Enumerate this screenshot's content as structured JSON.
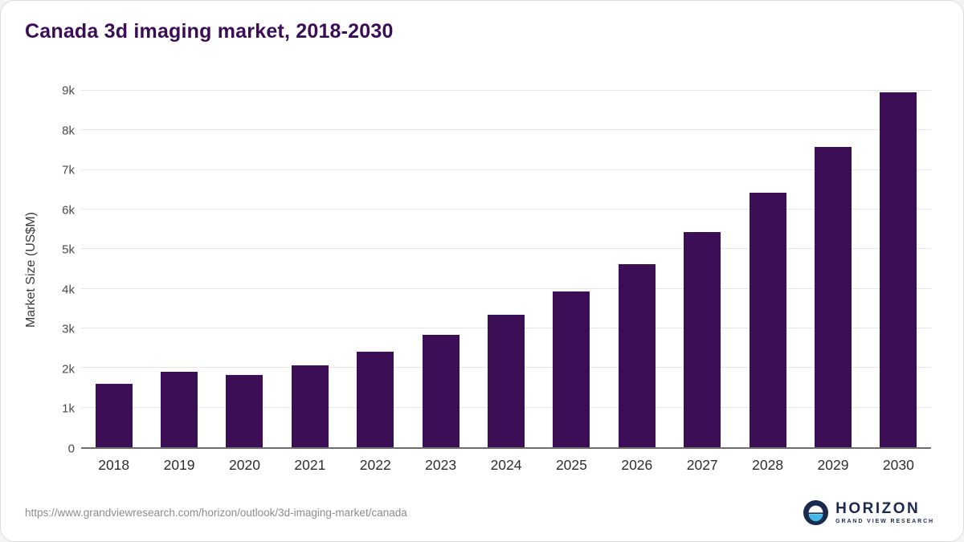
{
  "title": "Canada 3d imaging market, 2018-2030",
  "chart_data": {
    "type": "bar",
    "title": "Canada 3d imaging market, 2018-2030",
    "categories": [
      "2018",
      "2019",
      "2020",
      "2021",
      "2022",
      "2023",
      "2024",
      "2025",
      "2026",
      "2027",
      "2028",
      "2029",
      "2030"
    ],
    "values": [
      1600,
      1900,
      1820,
      2060,
      2420,
      2840,
      3350,
      3940,
      4620,
      5440,
      6420,
      7590,
      8960
    ],
    "xlabel": "",
    "ylabel": "Market Size (US$M)",
    "ylim": [
      0,
      9000
    ],
    "yticks": [
      0,
      1000,
      2000,
      3000,
      4000,
      5000,
      6000,
      7000,
      8000,
      9000
    ],
    "ytick_labels": [
      "0",
      "1k",
      "2k",
      "3k",
      "4k",
      "5k",
      "6k",
      "7k",
      "8k",
      "9k"
    ],
    "grid": true,
    "legend": "none",
    "bar_color": "#3c0e56"
  },
  "colors": {
    "title": "#3b0d55",
    "bar": "#3c0e56",
    "gridline": "#e7e7e7",
    "axis_line": "#6e6e6e",
    "logo_navy": "#1b2a4e",
    "logo_light_blue": "#45b6e8"
  },
  "footer": {
    "source_url": "https://www.grandviewresearch.com/horizon/outlook/3d-imaging-market/canada",
    "logo_title": "HORIZON",
    "logo_subtitle": "GRAND VIEW RESEARCH"
  }
}
